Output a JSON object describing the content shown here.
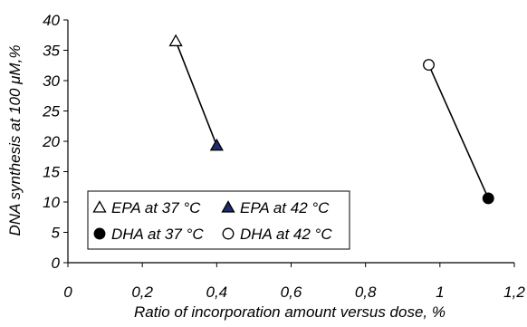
{
  "chart_data": {
    "type": "scatter",
    "xlabel": "Ratio of incorporation amount versus dose, %",
    "ylabel": "DNA synthesis at 100 μM,%",
    "xlim": [
      0,
      1.2
    ],
    "ylim": [
      0,
      40
    ],
    "x_ticks": [
      {
        "value": 0,
        "label": "0"
      },
      {
        "value": 0.2,
        "label": "0,2"
      },
      {
        "value": 0.4,
        "label": "0,4"
      },
      {
        "value": 0.6,
        "label": "0,6"
      },
      {
        "value": 0.8,
        "label": "0,8"
      },
      {
        "value": 1.0,
        "label": "1"
      },
      {
        "value": 1.2,
        "label": "1,2"
      }
    ],
    "y_ticks": [
      {
        "value": 0,
        "label": "0"
      },
      {
        "value": 5,
        "label": "5"
      },
      {
        "value": 10,
        "label": "10"
      },
      {
        "value": 15,
        "label": "15"
      },
      {
        "value": 20,
        "label": "20"
      },
      {
        "value": 25,
        "label": "25"
      },
      {
        "value": 30,
        "label": "30"
      },
      {
        "value": 35,
        "label": "35"
      },
      {
        "value": 40,
        "label": "40"
      }
    ],
    "grid": false,
    "legend_position": "bottom-left",
    "series": [
      {
        "name": "EPA at 37 °C",
        "marker": "triangle-open",
        "color": "#000000",
        "x": [
          0.29
        ],
        "y": [
          36.5
        ]
      },
      {
        "name": "EPA at 42 °C",
        "marker": "triangle-filled",
        "color": "#1f2a6b",
        "x": [
          0.4
        ],
        "y": [
          19.3
        ]
      },
      {
        "name": "DHA at 37 °C",
        "marker": "circle-filled",
        "color": "#000000",
        "x": [
          1.13
        ],
        "y": [
          10.6
        ]
      },
      {
        "name": "DHA at 42 °C",
        "marker": "circle-open",
        "color": "#000000",
        "x": [
          0.97
        ],
        "y": [
          32.6
        ]
      }
    ],
    "connectors": [
      {
        "from": "EPA at 37 °C",
        "to": "EPA at 42 °C"
      },
      {
        "from": "DHA at 42 °C",
        "to": "DHA at 37 °C"
      }
    ],
    "legend": [
      [
        "EPA at 37 °C",
        "EPA at 42 °C"
      ],
      [
        "DHA at 37 °C",
        "DHA at 42 °C"
      ]
    ]
  }
}
